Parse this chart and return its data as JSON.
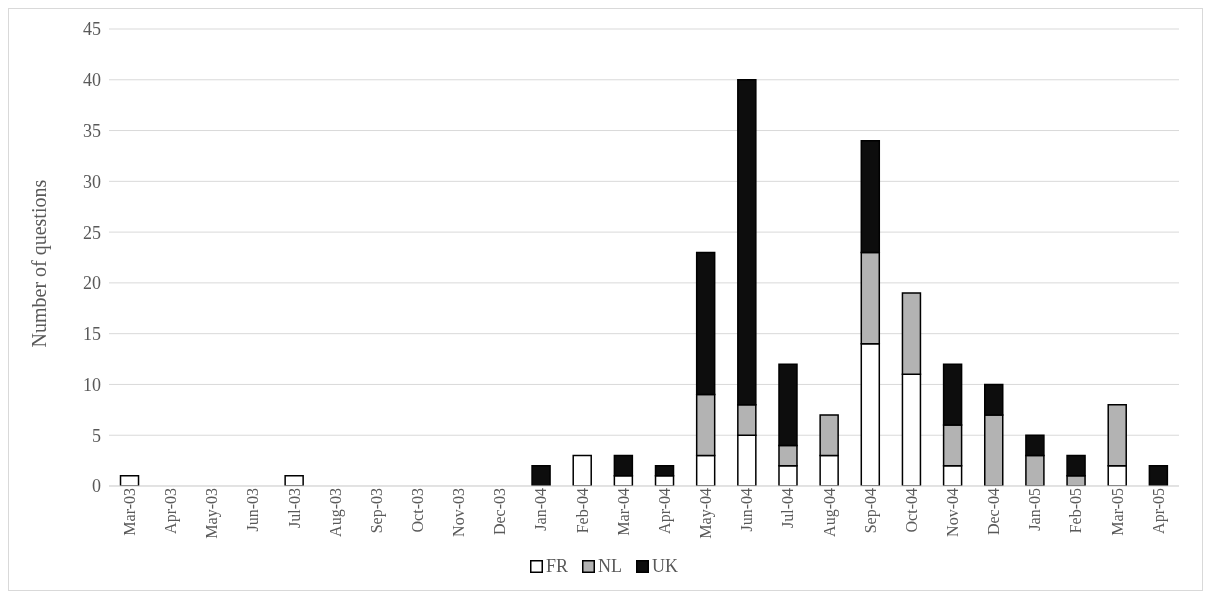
{
  "chart_data": {
    "type": "bar",
    "ylabel": "Number of questions",
    "stacked": true,
    "categories": [
      "Mar-03",
      "Apr-03",
      "May-03",
      "Jun-03",
      "Jul-03",
      "Aug-03",
      "Sep-03",
      "Oct-03",
      "Nov-03",
      "Dec-03",
      "Jan-04",
      "Feb-04",
      "Mar-04",
      "Apr-04",
      "May-04",
      "Jun-04",
      "Jul-04",
      "Aug-04",
      "Sep-04",
      "Oct-04",
      "Nov-04",
      "Dec-04",
      "Jan-05",
      "Feb-05",
      "Mar-05",
      "Apr-05"
    ],
    "series": [
      {
        "name": "FR",
        "color": "#ffffff",
        "values": [
          1,
          0,
          0,
          0,
          1,
          0,
          0,
          0,
          0,
          0,
          0,
          3,
          1,
          1,
          3,
          5,
          2,
          3,
          14,
          11,
          2,
          0,
          0,
          0,
          2,
          0
        ]
      },
      {
        "name": "NL",
        "color": "#b3b3b3",
        "values": [
          0,
          0,
          0,
          0,
          0,
          0,
          0,
          0,
          0,
          0,
          0,
          0,
          0,
          0,
          6,
          3,
          2,
          4,
          9,
          8,
          4,
          7,
          3,
          1,
          6,
          0
        ]
      },
      {
        "name": "UK",
        "color": "#0d0d0d",
        "values": [
          0,
          0,
          0,
          0,
          0,
          0,
          0,
          0,
          0,
          0,
          2,
          0,
          2,
          1,
          14,
          32,
          8,
          0,
          11,
          0,
          6,
          3,
          2,
          2,
          0,
          2
        ]
      }
    ],
    "ylim": [
      0,
      45
    ],
    "yticks": [
      0,
      5,
      10,
      15,
      20,
      25,
      30,
      35,
      40,
      45
    ],
    "grid": "y",
    "legend": "bottom"
  }
}
